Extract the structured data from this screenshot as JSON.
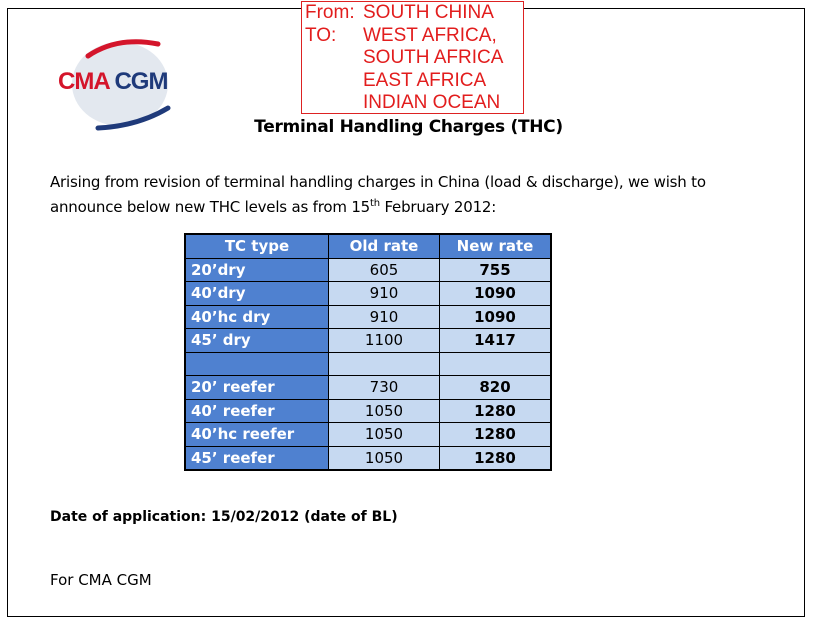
{
  "logo": {
    "text_red": "CMA",
    "text_blue": "CGM",
    "colors": {
      "red": "#d4152b",
      "blue": "#1f3a7a"
    }
  },
  "route": {
    "from_label": "From:",
    "from": "SOUTH CHINA",
    "to_label": "TO:",
    "to": [
      "WEST AFRICA,",
      "SOUTH AFRICA",
      "EAST AFRICA",
      "INDIAN OCEAN"
    ]
  },
  "title": "Terminal Handling Charges (THC)",
  "intro": {
    "line1": "Arising from revision of terminal handling charges in China (load & discharge), we wish to",
    "line2_pre": "announce below new THC levels as from 15",
    "sup": "th",
    "line2_post": " February 2012:"
  },
  "table": {
    "headers": [
      "TC type",
      "Old rate",
      "New rate"
    ],
    "rows": [
      [
        "20’dry",
        "605",
        "755"
      ],
      [
        "40’dry",
        "910",
        "1090"
      ],
      [
        "40’hc dry",
        "910",
        "1090"
      ],
      [
        "45’ dry",
        "1100",
        "1417"
      ],
      [
        "",
        "",
        ""
      ],
      [
        "20’ reefer",
        "730",
        "820"
      ],
      [
        "40’ reefer",
        "1050",
        "1280"
      ],
      [
        "40’hc reefer",
        "1050",
        "1280"
      ],
      [
        "45’ reefer",
        "1050",
        "1280"
      ]
    ]
  },
  "date_of_application": "Date of application: 15/02/2012 (date of BL)",
  "signature": "For CMA CGM"
}
